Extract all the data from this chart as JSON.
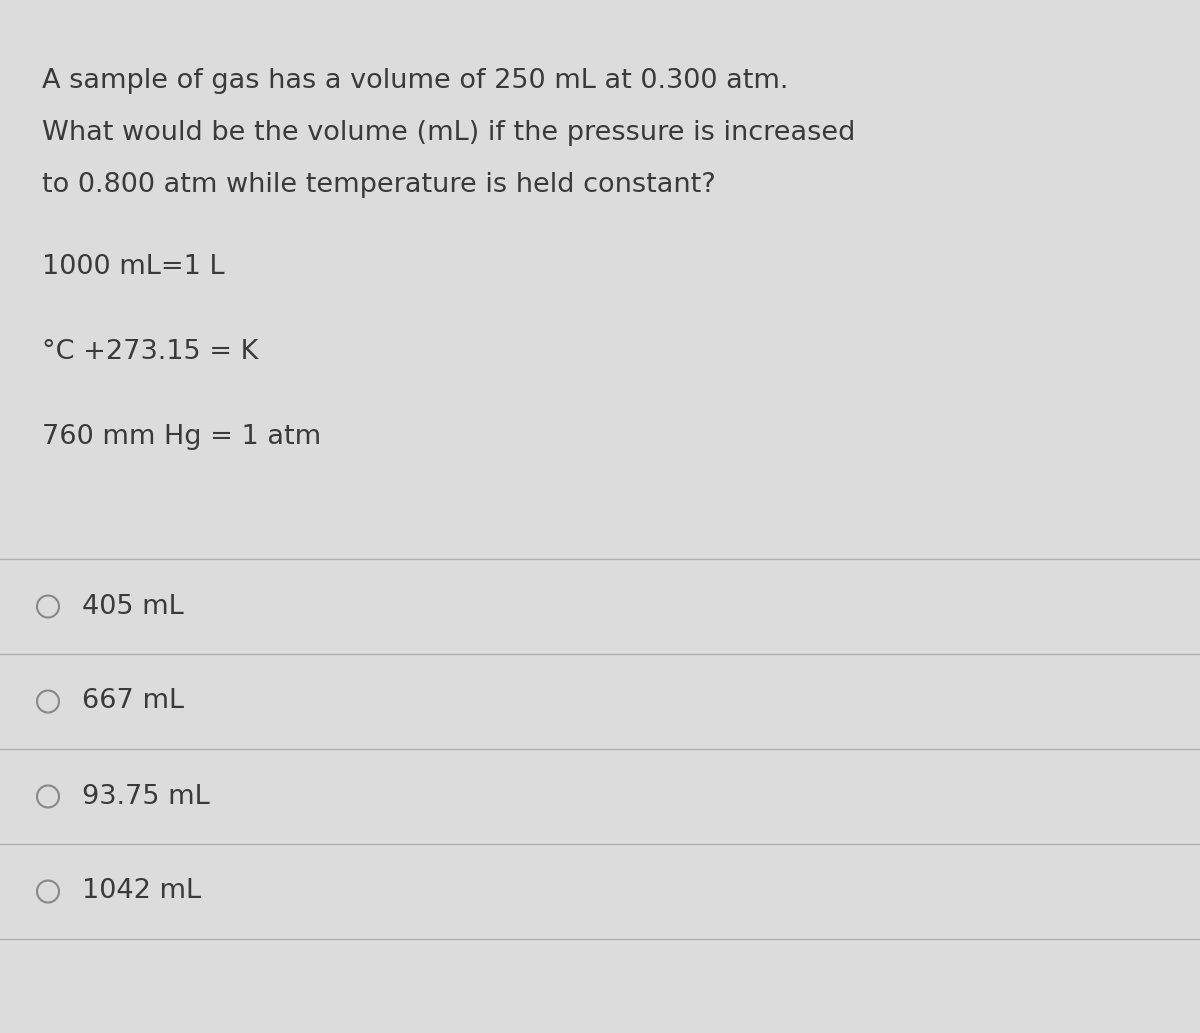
{
  "background_color": "#dcdcdc",
  "question_text_lines": [
    "A sample of gas has a volume of 250 mL at 0.300 atm.",
    "What would be the volume (mL) if the pressure is increased",
    "to 0.800 atm while temperature is held constant?"
  ],
  "info_lines": [
    "1000 mL=1 L",
    "°C +273.15 = K",
    "760 mm Hg = 1 atm"
  ],
  "answer_options": [
    "405 mL",
    "667 mL",
    "93.75 mL",
    "1042 mL"
  ],
  "text_color": "#3a3a3a",
  "divider_color": "#b0b0b0",
  "circle_color": "#888888",
  "question_fontsize": 19.5,
  "info_fontsize": 19.5,
  "answer_fontsize": 19.5,
  "fig_width": 12.0,
  "fig_height": 10.33,
  "dpi": 100
}
